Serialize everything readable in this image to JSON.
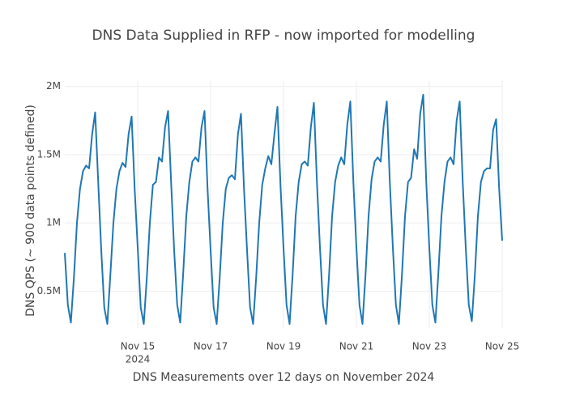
{
  "chart_data": {
    "type": "line",
    "title": "DNS Data Supplied in RFP - now imported for modelling",
    "x_label": "DNS Measurements over 12 days on November 2024",
    "y_label": "DNS QPS  (~ 900 data points defined)",
    "xlim": [
      "2024-11-13 00:00",
      "2024-11-25 00:00"
    ],
    "xticks": [
      {
        "value": "2024-11-15 00:00",
        "label": "Nov 15"
      },
      {
        "value": "2024-11-17 00:00",
        "label": "Nov 17"
      },
      {
        "value": "2024-11-19 00:00",
        "label": "Nov 19"
      },
      {
        "value": "2024-11-21 00:00",
        "label": "Nov 21"
      },
      {
        "value": "2024-11-23 00:00",
        "label": "Nov 23"
      },
      {
        "value": "2024-11-25 00:00",
        "label": "Nov 25"
      }
    ],
    "xtick_year": "2024",
    "ylim": [
      230000,
      2040000
    ],
    "yticks": [
      {
        "value": 500000,
        "label": "0.5M"
      },
      {
        "value": 1000000,
        "label": "1M"
      },
      {
        "value": 1500000,
        "label": "1.5M"
      },
      {
        "value": 2000000,
        "label": "2M"
      }
    ],
    "grid": true,
    "x": [
      "2024-11-13 00:00",
      "2024-11-13 02:00",
      "2024-11-13 04:00",
      "2024-11-13 06:00",
      "2024-11-13 08:00",
      "2024-11-13 10:00",
      "2024-11-13 12:00",
      "2024-11-13 14:00",
      "2024-11-13 16:00",
      "2024-11-13 18:00",
      "2024-11-13 20:00",
      "2024-11-13 22:00",
      "2024-11-14 00:00",
      "2024-11-14 02:00",
      "2024-11-14 04:00",
      "2024-11-14 06:00",
      "2024-11-14 08:00",
      "2024-11-14 10:00",
      "2024-11-14 12:00",
      "2024-11-14 14:00",
      "2024-11-14 16:00",
      "2024-11-14 18:00",
      "2024-11-14 20:00",
      "2024-11-14 22:00",
      "2024-11-15 00:00",
      "2024-11-15 02:00",
      "2024-11-15 04:00",
      "2024-11-15 06:00",
      "2024-11-15 08:00",
      "2024-11-15 10:00",
      "2024-11-15 12:00",
      "2024-11-15 14:00",
      "2024-11-15 16:00",
      "2024-11-15 18:00",
      "2024-11-15 20:00",
      "2024-11-15 22:00",
      "2024-11-16 00:00",
      "2024-11-16 02:00",
      "2024-11-16 04:00",
      "2024-11-16 06:00",
      "2024-11-16 08:00",
      "2024-11-16 10:00",
      "2024-11-16 12:00",
      "2024-11-16 14:00",
      "2024-11-16 16:00",
      "2024-11-16 18:00",
      "2024-11-16 20:00",
      "2024-11-16 22:00",
      "2024-11-17 00:00",
      "2024-11-17 02:00",
      "2024-11-17 04:00",
      "2024-11-17 06:00",
      "2024-11-17 08:00",
      "2024-11-17 10:00",
      "2024-11-17 12:00",
      "2024-11-17 14:00",
      "2024-11-17 16:00",
      "2024-11-17 18:00",
      "2024-11-17 20:00",
      "2024-11-17 22:00",
      "2024-11-18 00:00",
      "2024-11-18 02:00",
      "2024-11-18 04:00",
      "2024-11-18 06:00",
      "2024-11-18 08:00",
      "2024-11-18 10:00",
      "2024-11-18 12:00",
      "2024-11-18 14:00",
      "2024-11-18 16:00",
      "2024-11-18 18:00",
      "2024-11-18 20:00",
      "2024-11-18 22:00",
      "2024-11-19 00:00",
      "2024-11-19 02:00",
      "2024-11-19 04:00",
      "2024-11-19 06:00",
      "2024-11-19 08:00",
      "2024-11-19 10:00",
      "2024-11-19 12:00",
      "2024-11-19 14:00",
      "2024-11-19 16:00",
      "2024-11-19 18:00",
      "2024-11-19 20:00",
      "2024-11-19 22:00",
      "2024-11-20 00:00",
      "2024-11-20 02:00",
      "2024-11-20 04:00",
      "2024-11-20 06:00",
      "2024-11-20 08:00",
      "2024-11-20 10:00",
      "2024-11-20 12:00",
      "2024-11-20 14:00",
      "2024-11-20 16:00",
      "2024-11-20 18:00",
      "2024-11-20 20:00",
      "2024-11-20 22:00",
      "2024-11-21 00:00",
      "2024-11-21 02:00",
      "2024-11-21 04:00",
      "2024-11-21 06:00",
      "2024-11-21 08:00",
      "2024-11-21 10:00",
      "2024-11-21 12:00",
      "2024-11-21 14:00",
      "2024-11-21 16:00",
      "2024-11-21 18:00",
      "2024-11-21 20:00",
      "2024-11-21 22:00",
      "2024-11-22 00:00",
      "2024-11-22 02:00",
      "2024-11-22 04:00",
      "2024-11-22 06:00",
      "2024-11-22 08:00",
      "2024-11-22 10:00",
      "2024-11-22 12:00",
      "2024-11-22 14:00",
      "2024-11-22 16:00",
      "2024-11-22 18:00",
      "2024-11-22 20:00",
      "2024-11-22 22:00",
      "2024-11-23 00:00",
      "2024-11-23 02:00",
      "2024-11-23 04:00",
      "2024-11-23 06:00",
      "2024-11-23 08:00",
      "2024-11-23 10:00",
      "2024-11-23 12:00",
      "2024-11-23 14:00",
      "2024-11-23 16:00",
      "2024-11-23 18:00",
      "2024-11-23 20:00",
      "2024-11-23 22:00",
      "2024-11-24 00:00",
      "2024-11-24 02:00",
      "2024-11-24 04:00",
      "2024-11-24 06:00",
      "2024-11-24 08:00",
      "2024-11-24 10:00",
      "2024-11-24 12:00",
      "2024-11-24 14:00",
      "2024-11-24 16:00",
      "2024-11-24 18:00",
      "2024-11-24 20:00",
      "2024-11-24 22:00",
      "2024-11-25 00:00"
    ],
    "series": [
      {
        "color": "#1f77b4",
        "values": [
          780000,
          400000,
          270000,
          600000,
          1000000,
          1250000,
          1380000,
          1420000,
          1400000,
          1650000,
          1810000,
          1300000,
          800000,
          380000,
          260000,
          620000,
          1000000,
          1250000,
          1380000,
          1440000,
          1410000,
          1650000,
          1780000,
          1250000,
          820000,
          380000,
          260000,
          600000,
          1000000,
          1280000,
          1300000,
          1480000,
          1450000,
          1700000,
          1820000,
          1300000,
          800000,
          400000,
          270000,
          640000,
          1050000,
          1300000,
          1450000,
          1480000,
          1450000,
          1700000,
          1820000,
          1250000,
          800000,
          380000,
          260000,
          600000,
          1000000,
          1250000,
          1330000,
          1350000,
          1320000,
          1650000,
          1800000,
          1250000,
          800000,
          380000,
          260000,
          600000,
          1000000,
          1280000,
          1400000,
          1490000,
          1430000,
          1650000,
          1850000,
          1280000,
          820000,
          400000,
          260000,
          620000,
          1050000,
          1300000,
          1430000,
          1450000,
          1420000,
          1700000,
          1880000,
          1300000,
          820000,
          400000,
          260000,
          620000,
          1050000,
          1300000,
          1420000,
          1480000,
          1430000,
          1720000,
          1890000,
          1300000,
          820000,
          400000,
          260000,
          620000,
          1050000,
          1320000,
          1450000,
          1480000,
          1450000,
          1720000,
          1890000,
          1300000,
          820000,
          400000,
          260000,
          620000,
          1050000,
          1300000,
          1330000,
          1540000,
          1470000,
          1800000,
          1940000,
          1300000,
          820000,
          400000,
          270000,
          640000,
          1050000,
          1300000,
          1450000,
          1480000,
          1430000,
          1750000,
          1890000,
          1300000,
          820000,
          400000,
          280000,
          620000,
          1050000,
          1300000,
          1380000,
          1400000,
          1400000,
          1680000,
          1760000,
          1250000,
          870000
        ]
      }
    ]
  }
}
